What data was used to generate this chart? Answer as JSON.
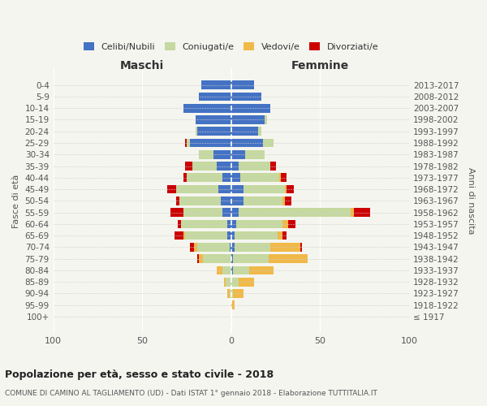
{
  "age_groups": [
    "100+",
    "95-99",
    "90-94",
    "85-89",
    "80-84",
    "75-79",
    "70-74",
    "65-69",
    "60-64",
    "55-59",
    "50-54",
    "45-49",
    "40-44",
    "35-39",
    "30-34",
    "25-29",
    "20-24",
    "15-19",
    "10-14",
    "5-9",
    "0-4"
  ],
  "birth_years": [
    "≤ 1917",
    "1918-1922",
    "1923-1927",
    "1928-1932",
    "1933-1937",
    "1938-1942",
    "1943-1947",
    "1948-1952",
    "1953-1957",
    "1958-1962",
    "1963-1967",
    "1968-1972",
    "1973-1977",
    "1978-1982",
    "1983-1987",
    "1988-1992",
    "1993-1997",
    "1998-2002",
    "2003-2007",
    "2008-2012",
    "2013-2017"
  ],
  "maschi": {
    "celibinubili": [
      0,
      0,
      0,
      0,
      0,
      0,
      1,
      2,
      2,
      5,
      6,
      7,
      5,
      8,
      10,
      23,
      19,
      20,
      27,
      18,
      17
    ],
    "coniugati": [
      0,
      0,
      1,
      3,
      5,
      16,
      18,
      24,
      26,
      22,
      23,
      24,
      20,
      14,
      8,
      2,
      1,
      0,
      0,
      0,
      0
    ],
    "vedovi": [
      0,
      0,
      1,
      1,
      3,
      2,
      2,
      1,
      0,
      0,
      0,
      0,
      0,
      0,
      0,
      0,
      0,
      0,
      0,
      0,
      0
    ],
    "divorziati": [
      0,
      0,
      0,
      0,
      0,
      1,
      2,
      5,
      2,
      7,
      2,
      5,
      2,
      4,
      0,
      1,
      0,
      0,
      0,
      0,
      0
    ]
  },
  "femmine": {
    "celibinubili": [
      0,
      0,
      0,
      0,
      1,
      1,
      2,
      2,
      3,
      4,
      7,
      7,
      5,
      4,
      8,
      18,
      15,
      19,
      22,
      17,
      13
    ],
    "coniugate": [
      0,
      0,
      1,
      4,
      9,
      20,
      20,
      24,
      26,
      63,
      22,
      23,
      22,
      18,
      11,
      6,
      2,
      1,
      0,
      0,
      0
    ],
    "vedove": [
      0,
      2,
      6,
      9,
      14,
      22,
      17,
      3,
      3,
      2,
      1,
      1,
      1,
      0,
      0,
      0,
      0,
      0,
      0,
      0,
      0
    ],
    "divorziate": [
      0,
      0,
      0,
      0,
      0,
      0,
      1,
      2,
      4,
      9,
      4,
      4,
      3,
      3,
      0,
      0,
      0,
      0,
      0,
      0,
      0
    ]
  },
  "colors": {
    "celibinubili": "#4472c4",
    "coniugati": "#c5d9a0",
    "vedovi": "#f0b948",
    "divorziati": "#cc0000"
  },
  "legend_labels": [
    "Celibi/Nubili",
    "Coniugati/e",
    "Vedovi/e",
    "Divorziati/e"
  ],
  "title": "Popolazione per età, sesso e stato civile - 2018",
  "subtitle": "COMUNE DI CAMINO AL TAGLIAMENTO (UD) - Dati ISTAT 1° gennaio 2018 - Elaborazione TUTTITALIA.IT",
  "xlabel_left": "Maschi",
  "xlabel_right": "Femmine",
  "ylabel_left": "Fasce di età",
  "ylabel_right": "Anni di nascita",
  "xlim": 100,
  "background_color": "#f5f5f0"
}
